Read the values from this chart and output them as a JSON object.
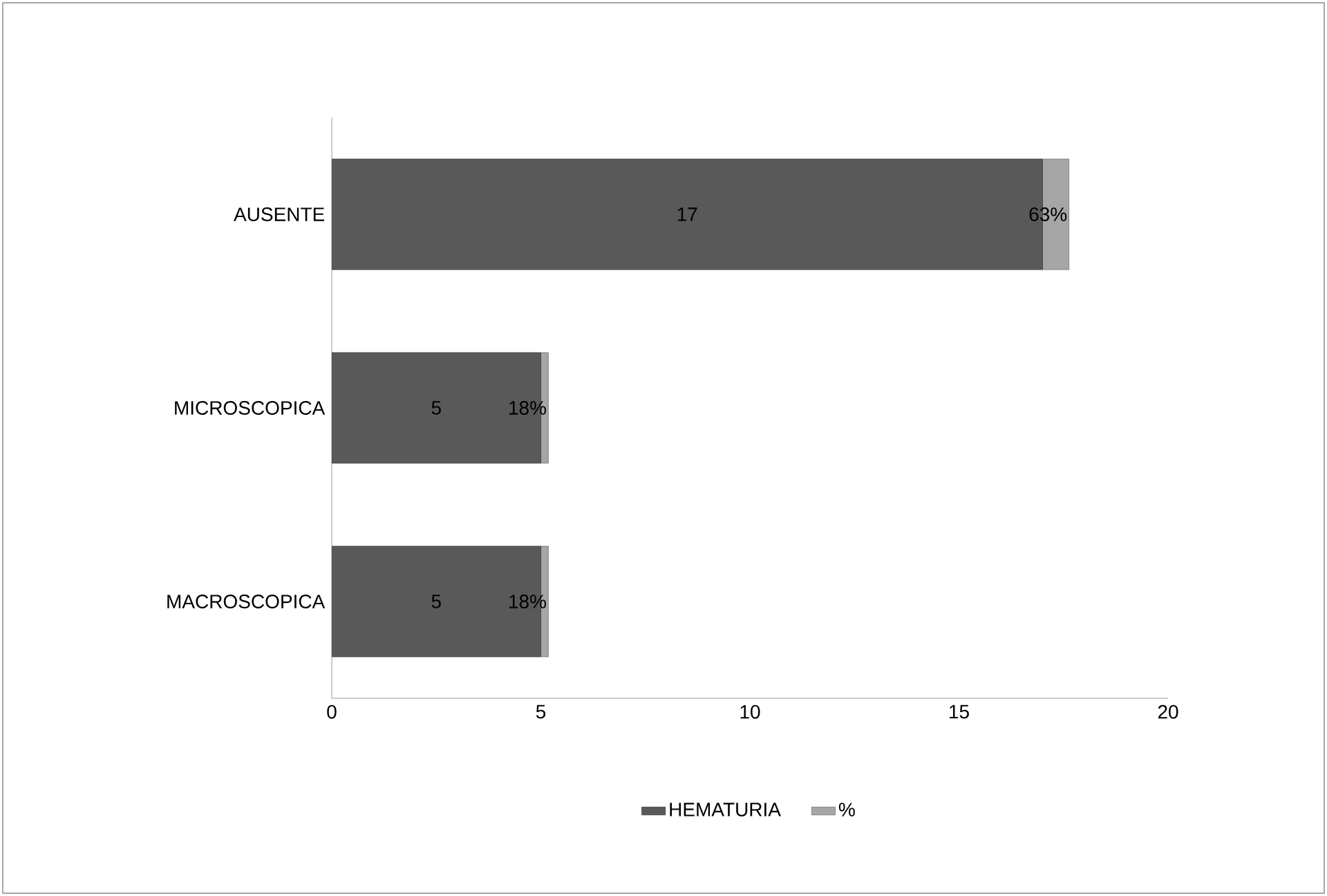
{
  "chart_data": {
    "type": "bar",
    "orientation": "horizontal",
    "stacked": true,
    "categories": [
      "AUSENTE",
      "MICROSCOPICA",
      "MACROSCOPICA"
    ],
    "series": [
      {
        "name": "HEMATURIA",
        "color": "#595959",
        "values": [
          17,
          5,
          5
        ],
        "value_labels": [
          "17",
          "5",
          "5"
        ]
      },
      {
        "name": "%",
        "color": "#a6a6a6",
        "values": [
          0.63,
          0.18,
          0.18
        ],
        "value_labels": [
          "63%",
          "18%",
          "18%"
        ]
      }
    ],
    "xlim": [
      0,
      20
    ],
    "xticks": [
      0,
      5,
      10,
      15,
      20
    ],
    "grid": false,
    "legend": "bottom"
  }
}
